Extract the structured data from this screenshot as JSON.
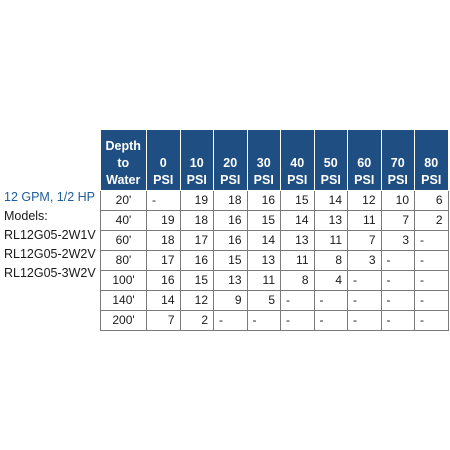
{
  "spec": {
    "rating": "12 GPM, 1/2 HP",
    "models_label": "Models:",
    "models": [
      "RL12G05-2W1V",
      "RL12G05-2W2V",
      "RL12G05-3W2V"
    ]
  },
  "table": {
    "depth_header": [
      "Depth",
      "to",
      "Water"
    ],
    "psi_headers": [
      [
        "0",
        "PSI"
      ],
      [
        "10",
        "PSI"
      ],
      [
        "20",
        "PSI"
      ],
      [
        "30",
        "PSI"
      ],
      [
        "40",
        "PSI"
      ],
      [
        "50",
        "PSI"
      ],
      [
        "60",
        "PSI"
      ],
      [
        "70",
        "PSI"
      ],
      [
        "80",
        "PSI"
      ]
    ],
    "rows": [
      {
        "depth": "20'",
        "values": [
          "-",
          "19",
          "18",
          "16",
          "15",
          "14",
          "12",
          "10",
          "6"
        ]
      },
      {
        "depth": "40'",
        "values": [
          "19",
          "18",
          "16",
          "15",
          "14",
          "13",
          "11",
          "7",
          "2"
        ]
      },
      {
        "depth": "60'",
        "values": [
          "18",
          "17",
          "16",
          "14",
          "13",
          "11",
          "7",
          "3",
          "-"
        ]
      },
      {
        "depth": "80'",
        "values": [
          "17",
          "16",
          "15",
          "13",
          "11",
          "8",
          "3",
          "-",
          "-"
        ]
      },
      {
        "depth": "100'",
        "values": [
          "16",
          "15",
          "13",
          "11",
          "8",
          "4",
          "-",
          "-",
          "-"
        ]
      },
      {
        "depth": "140'",
        "values": [
          "14",
          "12",
          "9",
          "5",
          "-",
          "-",
          "-",
          "-",
          "-"
        ]
      },
      {
        "depth": "200'",
        "values": [
          "7",
          "2",
          "-",
          "-",
          "-",
          "-",
          "-",
          "-",
          "-"
        ]
      }
    ]
  },
  "colors": {
    "header_bg": "#1f4f82",
    "header_text": "#ffffff",
    "spec_text": "#1f5d9c",
    "grid_line": "#7a7a7a"
  }
}
